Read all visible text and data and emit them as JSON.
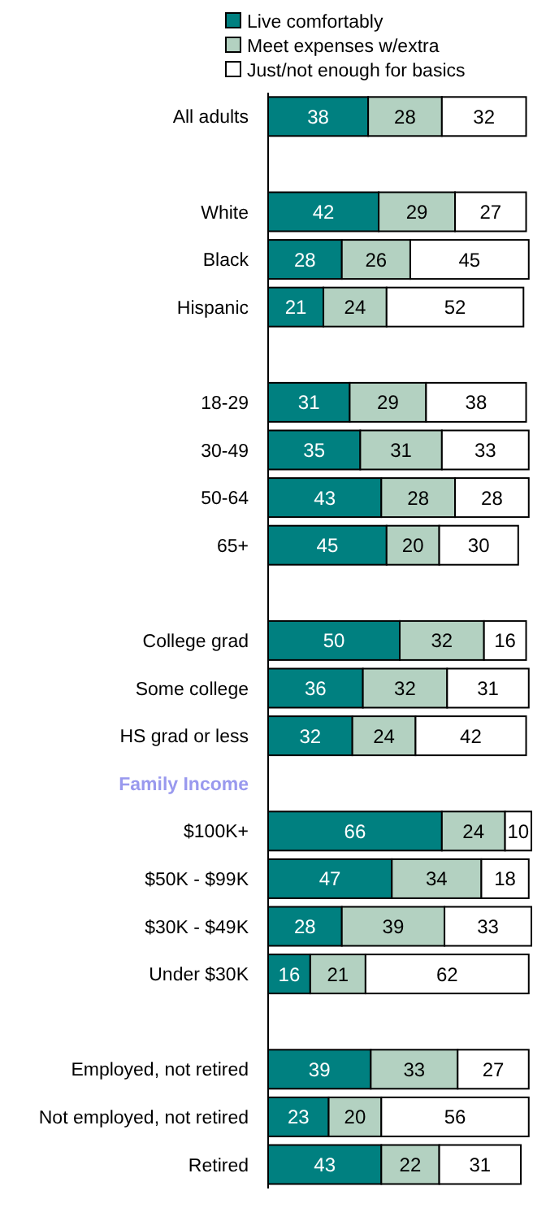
{
  "chart_data": {
    "type": "bar",
    "orientation": "horizontal",
    "stacked": true,
    "data_labels": true,
    "legend": "top",
    "categories": [
      "All adults",
      null,
      "White",
      "Black",
      "Hispanic",
      null,
      "18-29",
      "30-49",
      "50-64",
      "65+",
      null,
      "College grad",
      "Some college",
      "HS grad or less",
      "Family Income",
      "$100K+",
      "$50K - $99K",
      "$30K - $49K",
      "Under $30K",
      null,
      "Employed, not retired",
      "Not employed, not retired",
      "Retired"
    ],
    "series": [
      {
        "name": "Live comfortably",
        "color": "#008080",
        "values": [
          38,
          null,
          42,
          28,
          21,
          null,
          31,
          35,
          43,
          45,
          null,
          50,
          36,
          32,
          null,
          66,
          47,
          28,
          16,
          null,
          39,
          23,
          43
        ]
      },
      {
        "name": "Meet expenses w/extra",
        "color": "#b3d1c1",
        "values": [
          28,
          null,
          29,
          26,
          24,
          null,
          29,
          31,
          28,
          20,
          null,
          32,
          32,
          24,
          null,
          24,
          34,
          39,
          21,
          null,
          33,
          20,
          22
        ]
      },
      {
        "name": "Just/not enough for basics",
        "color": "#ffffff",
        "values": [
          32,
          null,
          27,
          45,
          52,
          null,
          38,
          33,
          28,
          30,
          null,
          16,
          31,
          42,
          null,
          10,
          18,
          33,
          62,
          null,
          27,
          56,
          31
        ]
      }
    ]
  }
}
